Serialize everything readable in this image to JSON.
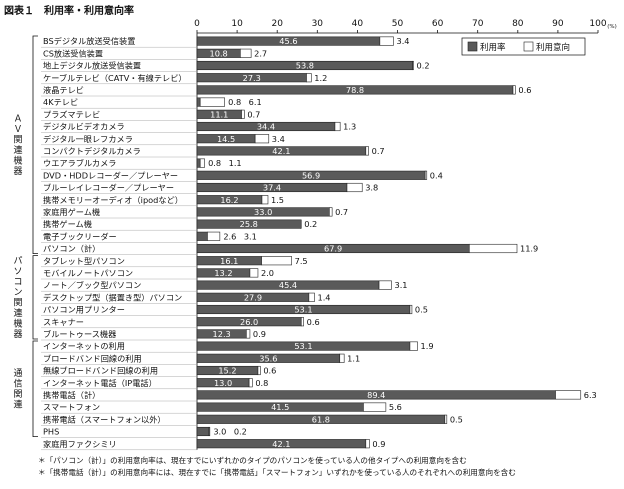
{
  "title": "図表１　利用率・利用意向率",
  "unit": "(%)",
  "notes": [
    "＊「パソコン（計）」の利用意向率は、現在すでにいずれかのタイプのパソコンを使っている人の他タイプへの利用意向を含む",
    "＊「携帯電話（計）」の利用意向率には、現在すでに「携帯電話」「スマートフォン」いずれかを使っている人のそれぞれへの利用意向を含む"
  ],
  "chart_data": {
    "type": "bar",
    "orientation": "horizontal",
    "stacked": true,
    "title": "利用率・利用意向率",
    "xlim": [
      0,
      100
    ],
    "xticks": [
      0,
      10,
      20,
      30,
      40,
      50,
      60,
      70,
      80,
      90,
      100
    ],
    "grid": false,
    "legend_position": "top-right",
    "groups": [
      {
        "label": "ＡＶ関連機器",
        "from": 0,
        "to": 17
      },
      {
        "label": "パソコン関連機器",
        "from": 18,
        "to": 24
      },
      {
        "label": "通信関連",
        "from": 25,
        "to": 32
      }
    ],
    "categories": [
      "BSデジタル放送受信装置",
      "CS放送受信装置",
      "地上デジタル放送受信装置",
      "ケーブルテレビ（CATV・有線テレビ）",
      "液晶テレビ",
      "4Kテレビ",
      "プラズマテレビ",
      "デジタルビデオカメラ",
      "デジタル一眼レフカメラ",
      "コンパクトデジタルカメラ",
      "ウエアラブルカメラ",
      "DVD・HDDレコーダー／プレーヤー",
      "ブルーレイレコーダー／プレーヤー",
      "携帯メモリーオーディオ（ipodなど）",
      "家庭用ゲーム機",
      "携帯ゲーム機",
      "電子ブックリーダー",
      "パソコン（計）",
      "タブレット型パソコン",
      "モバイルノートパソコン",
      "ノート／ブック型パソコン",
      "デスクトップ型（据置き型）パソコン",
      "パソコン用プリンター",
      "スキャナー",
      "ブルートゥース機器",
      "インターネットの利用",
      "ブロードバンド回線の利用",
      "無線ブロードバンド回線の利用",
      "インターネット電話（IP電話）",
      "携帯電話（計）",
      "スマートフォン",
      "携帯電話（スマートフォン以外）",
      "PHS",
      "家庭用ファクシミリ"
    ],
    "series": [
      {
        "name": "利用率",
        "color": "#5a5a5a",
        "label_color": "#ffffff",
        "values": [
          45.6,
          10.8,
          53.8,
          27.3,
          78.8,
          0.8,
          11.1,
          34.4,
          14.5,
          42.1,
          0.8,
          56.9,
          37.4,
          16.2,
          33.0,
          25.8,
          2.6,
          67.9,
          16.1,
          13.2,
          45.4,
          27.9,
          53.1,
          26.0,
          12.3,
          53.1,
          35.6,
          15.2,
          13.0,
          89.4,
          41.5,
          61.8,
          3.0,
          42.1
        ],
        "labels": [
          "45.6",
          "10.8",
          "53.8",
          "27.3",
          "78.8",
          "0.8",
          "11.1",
          "34.4",
          "14.5",
          "42.1",
          "0.8",
          "56.9",
          "37.4",
          "16.2",
          "33.0",
          "25.8",
          "2.6",
          "67.9",
          "16.1",
          "13.2",
          "45.4",
          "27.9",
          "53.1",
          "26.0",
          "12.3",
          "53.1",
          "35.6",
          "15.2",
          "13.0",
          "89.4",
          "41.5",
          "61.8",
          "3.0",
          "42.1"
        ]
      },
      {
        "name": "利用意向",
        "color": "#ffffff",
        "label_color": "#111111",
        "values": [
          3.4,
          2.7,
          0.2,
          1.2,
          0.6,
          6.1,
          0.7,
          1.3,
          3.4,
          0.7,
          1.1,
          0.4,
          3.8,
          1.5,
          0.7,
          0.2,
          3.1,
          11.9,
          7.5,
          2.0,
          3.1,
          1.4,
          0.5,
          0.6,
          0.9,
          1.9,
          1.1,
          0.6,
          0.8,
          6.3,
          5.6,
          0.5,
          0.2,
          0.9
        ],
        "labels": [
          "3.4",
          "2.7",
          "0.2",
          "1.2",
          "0.6",
          "6.1",
          "0.7",
          "1.3",
          "3.4",
          "0.7",
          "1.1",
          "0.4",
          "3.8",
          "1.5",
          "0.7",
          "0.2",
          "3.1",
          "11.9",
          "7.5",
          "2.0",
          "3.1",
          "1.4",
          "0.5",
          "0.6",
          "0.9",
          "1.9",
          "1.1",
          "0.6",
          "0.8",
          "6.3",
          "5.6",
          "0.5",
          "0.2",
          "0.9"
        ]
      }
    ]
  }
}
